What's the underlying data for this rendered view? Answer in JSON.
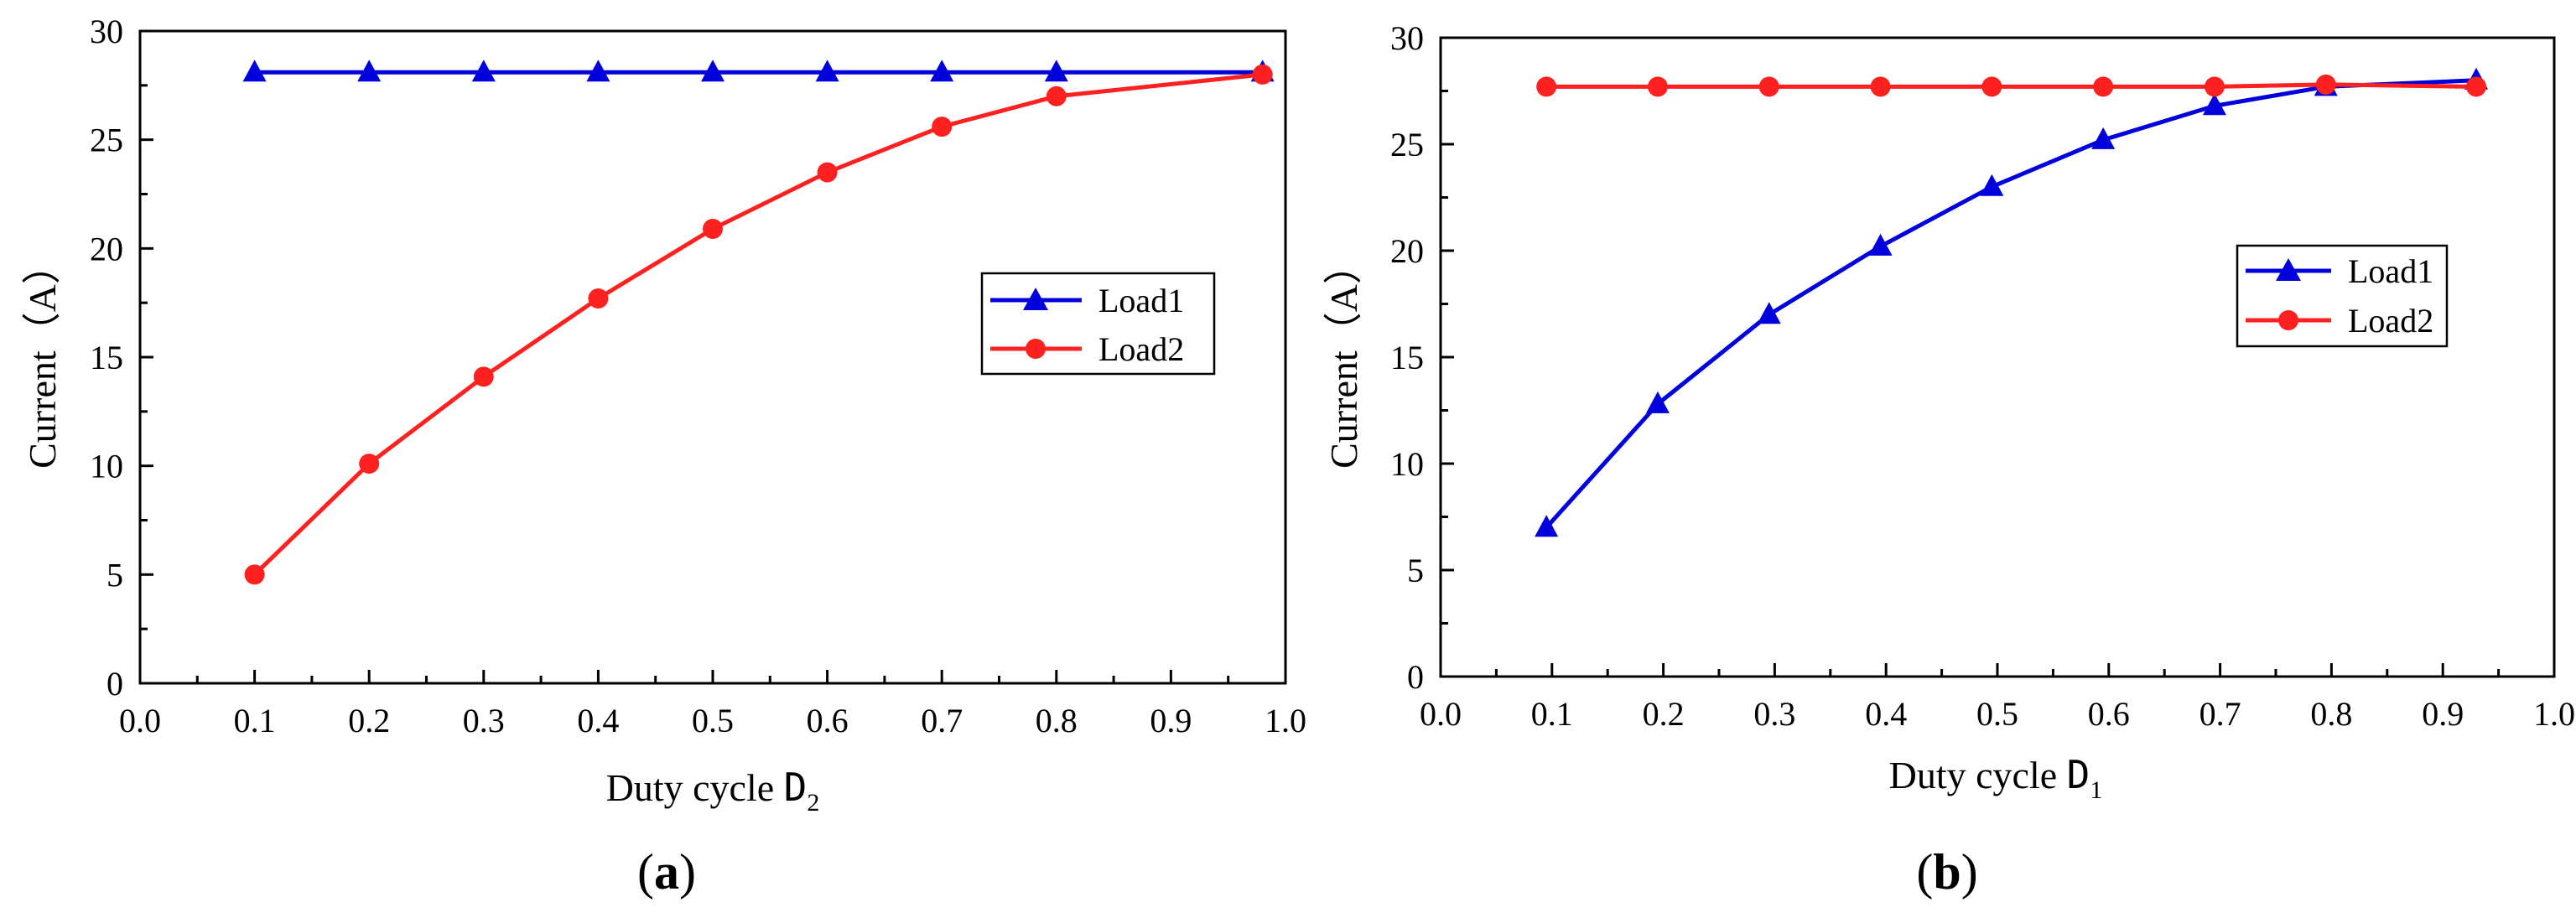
{
  "chart_data": [
    {
      "id": "a",
      "type": "line",
      "panel_label": "a",
      "xlabel": "Duty cycle ",
      "xlabel_var": "D",
      "xlabel_sub": "2",
      "ylabel": "Current（A）",
      "xlim": [
        0.0,
        1.0
      ],
      "ylim": [
        0,
        30
      ],
      "xticks": [
        "0.0",
        "0.1",
        "0.2",
        "0.3",
        "0.4",
        "0.5",
        "0.6",
        "0.7",
        "0.8",
        "0.9",
        "1.0"
      ],
      "yticks": [
        "0",
        "5",
        "10",
        "15",
        "20",
        "25",
        "30"
      ],
      "legend_position": "center-right",
      "series": [
        {
          "name": "Load1",
          "color": "#0000dd",
          "marker": "triangle",
          "x": [
            0.1,
            0.2,
            0.3,
            0.4,
            0.5,
            0.6,
            0.7,
            0.8,
            0.98
          ],
          "y": [
            28.1,
            28.1,
            28.1,
            28.1,
            28.1,
            28.1,
            28.1,
            28.1,
            28.1
          ]
        },
        {
          "name": "Load2",
          "color": "#ff2020",
          "marker": "circle",
          "x": [
            0.1,
            0.2,
            0.3,
            0.4,
            0.5,
            0.6,
            0.7,
            0.8,
            0.98
          ],
          "y": [
            5.0,
            10.1,
            14.1,
            17.7,
            20.9,
            23.5,
            25.6,
            27.0,
            28.0
          ]
        }
      ]
    },
    {
      "id": "b",
      "type": "line",
      "panel_label": "b",
      "xlabel": "Duty cycle ",
      "xlabel_var": "D",
      "xlabel_sub": "1",
      "ylabel": "Current（A）",
      "xlim": [
        0.0,
        1.0
      ],
      "ylim": [
        0,
        30
      ],
      "xticks": [
        "0.0",
        "0.1",
        "0.2",
        "0.3",
        "0.4",
        "0.5",
        "0.6",
        "0.7",
        "0.8",
        "0.9",
        "1.0"
      ],
      "yticks": [
        "0",
        "5",
        "10",
        "15",
        "20",
        "25",
        "30"
      ],
      "legend_position": "top-right",
      "series": [
        {
          "name": "Load1",
          "color": "#0000dd",
          "marker": "triangle",
          "x": [
            0.095,
            0.195,
            0.295,
            0.395,
            0.495,
            0.595,
            0.695,
            0.795,
            0.93
          ],
          "y": [
            7.0,
            12.8,
            17.0,
            20.2,
            23.0,
            25.2,
            26.8,
            27.7,
            28.0
          ]
        },
        {
          "name": "Load2",
          "color": "#ff2020",
          "marker": "circle",
          "x": [
            0.095,
            0.195,
            0.295,
            0.395,
            0.495,
            0.595,
            0.695,
            0.795,
            0.93
          ],
          "y": [
            27.7,
            27.7,
            27.7,
            27.7,
            27.7,
            27.7,
            27.7,
            27.8,
            27.7
          ]
        }
      ]
    }
  ]
}
